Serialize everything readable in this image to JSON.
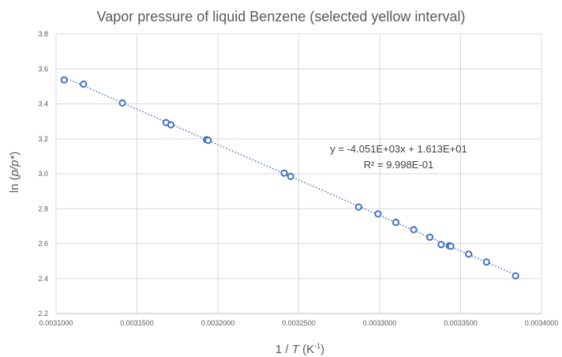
{
  "chart_data": {
    "type": "scatter",
    "title": "Vapor pressure of liquid Benzene (selected yellow interval)",
    "xlabel": "1 / T (K⁻¹)",
    "xlabel_parts": {
      "pre": "1 / ",
      "var": "T",
      "post": " (K",
      "sup": "-1",
      "close": ")"
    },
    "ylabel": "ln (p/p*)",
    "ylabel_parts": {
      "pre": "ln (",
      "var": "p/p*",
      "post": ")"
    },
    "xlim": [
      0.0031,
      0.0034
    ],
    "ylim": [
      2.2,
      3.8
    ],
    "x_ticks": [
      0.0031,
      0.00315,
      0.0032,
      0.00325,
      0.0033,
      0.00335,
      0.0034
    ],
    "x_tick_labels": [
      "0.0031000",
      "0.0031500",
      "0.0032000",
      "0.0032500",
      "0.0033000",
      "0.0033500",
      "0.0034000"
    ],
    "y_ticks": [
      2.2,
      2.4,
      2.6,
      2.8,
      3.0,
      3.2,
      3.4,
      3.6,
      3.8
    ],
    "y_tick_labels": [
      "2.2",
      "2.4",
      "2.6",
      "2.8",
      "3.0",
      "3.2",
      "3.4",
      "3.6",
      "3.8"
    ],
    "grid": true,
    "legend": "none",
    "marker_color": "#4472c4",
    "series": [
      {
        "x": [
          0.003105,
          0.003117,
          0.003141,
          0.003168,
          0.003171,
          0.003193,
          0.003194,
          0.003241,
          0.003245,
          0.003287,
          0.003299,
          0.00331,
          0.003321,
          0.003331,
          0.003338,
          0.003343,
          0.003344,
          0.003355,
          0.003366,
          0.003384
        ],
        "y": [
          3.537,
          3.513,
          3.405,
          3.293,
          3.28,
          3.195,
          3.191,
          3.004,
          2.985,
          2.81,
          2.77,
          2.722,
          2.68,
          2.637,
          2.595,
          2.588,
          2.585,
          2.54,
          2.495,
          2.416
        ]
      }
    ],
    "trendline": {
      "slope": -4051,
      "intercept": 16.13,
      "x_range": [
        0.003105,
        0.003384
      ]
    },
    "annotations": [
      "y = -4.051E+03x + 1.613E+01",
      "R² = 9.998E-01"
    ]
  }
}
